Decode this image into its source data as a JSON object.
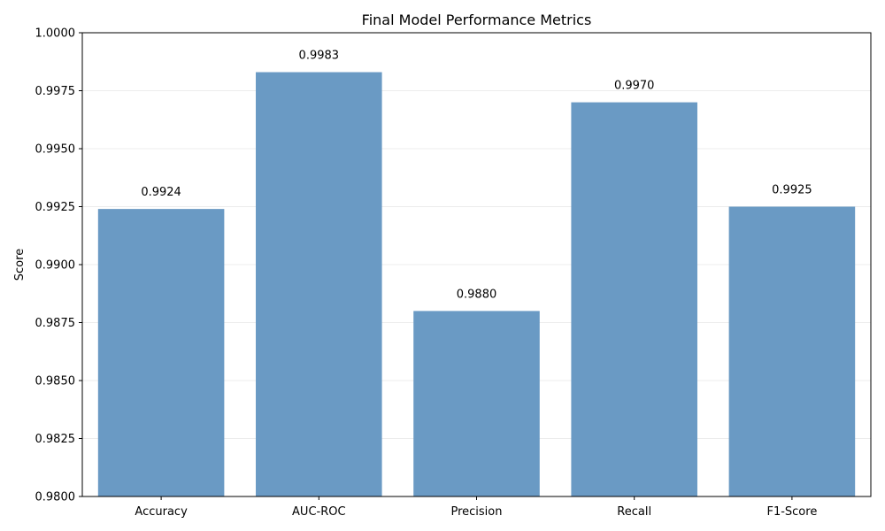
{
  "chart_data": {
    "type": "bar",
    "title": "Final Model Performance Metrics",
    "xlabel": "",
    "ylabel": "Score",
    "categories": [
      "Accuracy",
      "AUC-ROC",
      "Precision",
      "Recall",
      "F1-Score"
    ],
    "values": [
      0.9924,
      0.9983,
      0.988,
      0.997,
      0.9925
    ],
    "value_labels": [
      "0.9924",
      "0.9983",
      "0.9880",
      "0.9970",
      "0.9925"
    ],
    "ylim": [
      0.98,
      1.0
    ],
    "yticks": [
      0.98,
      0.9825,
      0.985,
      0.9875,
      0.99,
      0.9925,
      0.995,
      0.9975,
      1.0
    ],
    "ytick_labels": [
      "0.9800",
      "0.9825",
      "0.9850",
      "0.9875",
      "0.9900",
      "0.9925",
      "0.9950",
      "0.9975",
      "1.0000"
    ],
    "grid": "y",
    "bar_color": "#6a9ac4",
    "grid_color": "#e6e6e6",
    "axis_color": "#000000"
  }
}
